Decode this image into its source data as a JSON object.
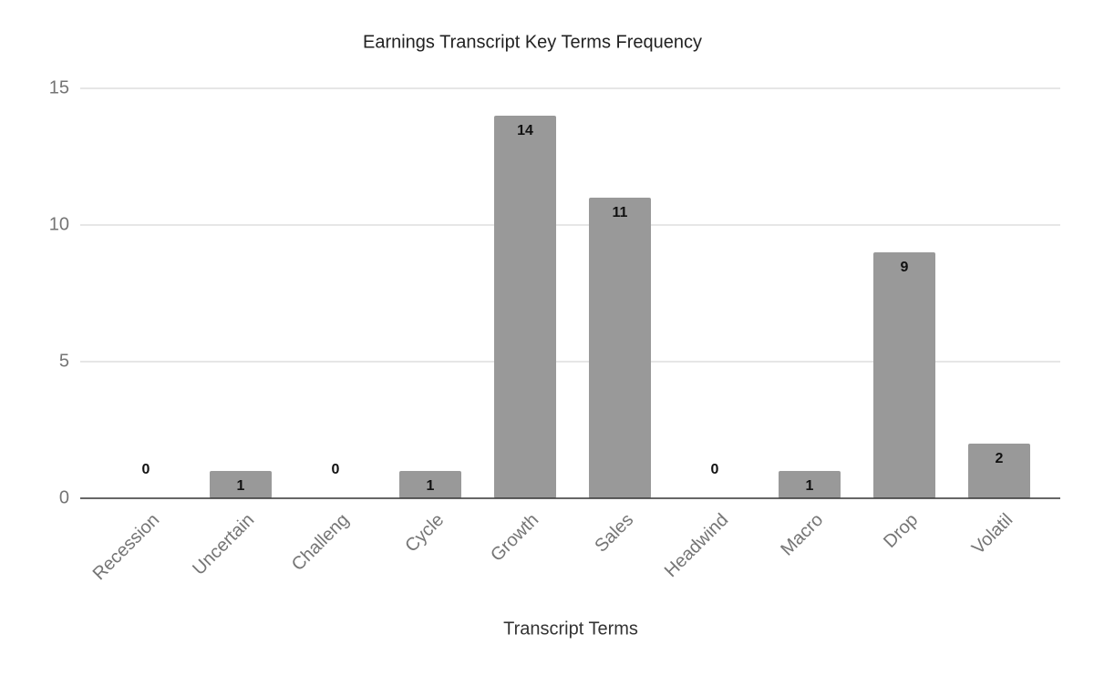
{
  "chart_data": {
    "type": "bar",
    "title": "Earnings Transcript Key Terms Frequency",
    "x_label": "Transcript Terms",
    "categories": [
      "Recession",
      "Uncertain",
      "Challeng",
      "Cycle",
      "Growth",
      "Sales",
      "Headwind",
      "Macro",
      "Drop",
      "Volatil"
    ],
    "values": [
      0,
      1,
      0,
      1,
      14,
      11,
      0,
      1,
      9,
      2
    ],
    "color": "#999999",
    "ylim": [
      0,
      15
    ],
    "yticks": [
      0,
      5,
      10,
      15
    ],
    "grid": true
  }
}
